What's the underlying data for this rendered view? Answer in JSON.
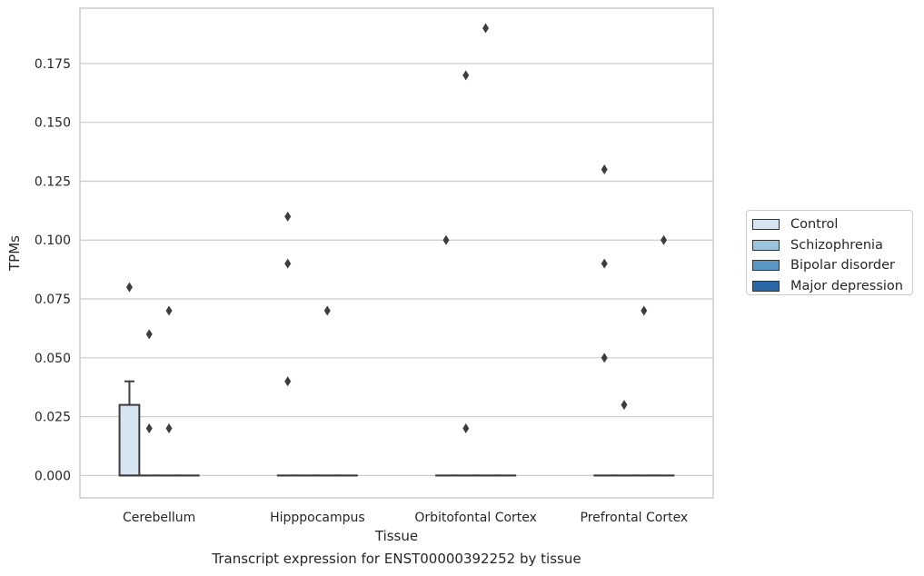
{
  "caption": "Transcript expression for ENST00000392252 by tissue",
  "chart_data": {
    "type": "box",
    "title": "",
    "xlabel": "Tissue",
    "ylabel": "TPMs",
    "ylim": [
      -0.0095,
      0.1985
    ],
    "yticks": [
      0.0,
      0.025,
      0.05,
      0.075,
      0.1,
      0.125,
      0.15,
      0.175
    ],
    "ytick_labels": [
      "0.000",
      "0.025",
      "0.050",
      "0.075",
      "0.100",
      "0.125",
      "0.150",
      "0.175"
    ],
    "grid": "horizontal",
    "legend_position": "right",
    "categories": [
      "Cerebellum",
      "Hipppocampus",
      "Orbitofontal Cortex",
      "Prefrontal Cortex"
    ],
    "series": [
      {
        "name": "Control",
        "color": "#d7e5f2",
        "boxes": [
          {
            "q1": 0.0,
            "median": 0.0,
            "q3": 0.03,
            "whisker_low": 0.0,
            "whisker_high": 0.04,
            "outliers": [
              0.08
            ]
          },
          {
            "q1": 0.0,
            "median": 0.0,
            "q3": 0.0,
            "whisker_low": 0.0,
            "whisker_high": 0.0,
            "outliers": [
              0.11,
              0.09,
              0.04
            ]
          },
          {
            "q1": 0.0,
            "median": 0.0,
            "q3": 0.0,
            "whisker_low": 0.0,
            "whisker_high": 0.0,
            "outliers": [
              0.1
            ]
          },
          {
            "q1": 0.0,
            "median": 0.0,
            "q3": 0.0,
            "whisker_low": 0.0,
            "whisker_high": 0.0,
            "outliers": [
              0.13,
              0.09,
              0.05
            ]
          }
        ]
      },
      {
        "name": "Schizophrenia",
        "color": "#9ac3de",
        "boxes": [
          {
            "q1": 0.0,
            "median": 0.0,
            "q3": 0.0,
            "whisker_low": 0.0,
            "whisker_high": 0.0,
            "outliers": [
              0.06,
              0.02
            ]
          },
          {
            "q1": 0.0,
            "median": 0.0,
            "q3": 0.0,
            "whisker_low": 0.0,
            "whisker_high": 0.0,
            "outliers": []
          },
          {
            "q1": 0.0,
            "median": 0.0,
            "q3": 0.0,
            "whisker_low": 0.0,
            "whisker_high": 0.0,
            "outliers": [
              0.17,
              0.02
            ]
          },
          {
            "q1": 0.0,
            "median": 0.0,
            "q3": 0.0,
            "whisker_low": 0.0,
            "whisker_high": 0.0,
            "outliers": [
              0.03
            ]
          }
        ]
      },
      {
        "name": "Bipolar disorder",
        "color": "#5a97c4",
        "boxes": [
          {
            "q1": 0.0,
            "median": 0.0,
            "q3": 0.0,
            "whisker_low": 0.0,
            "whisker_high": 0.0,
            "outliers": [
              0.07,
              0.02
            ]
          },
          {
            "q1": 0.0,
            "median": 0.0,
            "q3": 0.0,
            "whisker_low": 0.0,
            "whisker_high": 0.0,
            "outliers": [
              0.07
            ]
          },
          {
            "q1": 0.0,
            "median": 0.0,
            "q3": 0.0,
            "whisker_low": 0.0,
            "whisker_high": 0.0,
            "outliers": [
              0.19
            ]
          },
          {
            "q1": 0.0,
            "median": 0.0,
            "q3": 0.0,
            "whisker_low": 0.0,
            "whisker_high": 0.0,
            "outliers": [
              0.07
            ]
          }
        ]
      },
      {
        "name": "Major depression",
        "color": "#2a68a8",
        "boxes": [
          {
            "q1": 0.0,
            "median": 0.0,
            "q3": 0.0,
            "whisker_low": 0.0,
            "whisker_high": 0.0,
            "outliers": []
          },
          {
            "q1": 0.0,
            "median": 0.0,
            "q3": 0.0,
            "whisker_low": 0.0,
            "whisker_high": 0.0,
            "outliers": []
          },
          {
            "q1": 0.0,
            "median": 0.0,
            "q3": 0.0,
            "whisker_low": 0.0,
            "whisker_high": 0.0,
            "outliers": []
          },
          {
            "q1": 0.0,
            "median": 0.0,
            "q3": 0.0,
            "whisker_low": 0.0,
            "whisker_high": 0.0,
            "outliers": [
              0.1
            ]
          }
        ]
      }
    ]
  }
}
